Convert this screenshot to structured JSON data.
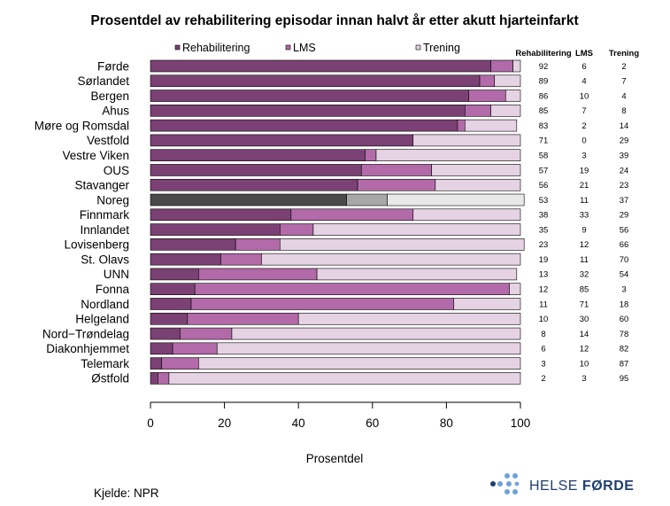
{
  "chart_data": {
    "type": "bar",
    "orientation": "horizontal",
    "stacked": true,
    "title": "Prosentdel av rehabilitering episodar innan halvt år etter akutt hjarteinfarkt",
    "xlabel": "Prosentdel",
    "xlim": [
      0,
      100
    ],
    "xticks": [
      0,
      20,
      40,
      60,
      80,
      100
    ],
    "legend_position": "top",
    "categories": [
      "Førde",
      "Sørlandet",
      "Bergen",
      "Ahus",
      "Møre og Romsdal",
      "Vestfold",
      "Vestre Viken",
      "OUS",
      "Stavanger",
      "Noreg",
      "Finnmark",
      "Innlandet",
      "Lovisenberg",
      "St. Olavs",
      "UNN",
      "Fonna",
      "Nordland",
      "Helgeland",
      "Nord−Trøndelag",
      "Diakonhjemmet",
      "Telemark",
      "Østfold"
    ],
    "highlight_category": "Noreg",
    "series": [
      {
        "name": "Rehabilitering",
        "color": "#7b4174",
        "highlight_color": "#4a4a4a",
        "values": [
          92,
          89,
          86,
          85,
          83,
          71,
          58,
          57,
          56,
          53,
          38,
          35,
          23,
          19,
          13,
          12,
          11,
          10,
          8,
          6,
          3,
          2
        ]
      },
      {
        "name": "LMS",
        "color": "#b26aa9",
        "highlight_color": "#a8a8a8",
        "values": [
          6,
          4,
          10,
          7,
          2,
          0,
          3,
          19,
          21,
          11,
          33,
          9,
          12,
          11,
          32,
          85,
          71,
          30,
          14,
          12,
          10,
          3
        ]
      },
      {
        "name": "Trening",
        "color": "#e5d2e3",
        "highlight_color": "#e8e8e8",
        "values": [
          2,
          7,
          4,
          8,
          14,
          29,
          39,
          24,
          23,
          37,
          29,
          56,
          66,
          70,
          54,
          3,
          18,
          60,
          78,
          82,
          87,
          95
        ]
      }
    ],
    "table_headers": [
      "Rehabilitering",
      "LMS",
      "Trening"
    ]
  },
  "source": "Kjelde: NPR",
  "logo": {
    "name_regular": "HELSE ",
    "name_bold": "FØRDE",
    "dot_color": "#6ea3d8",
    "text_color": "#1f3f6e"
  }
}
